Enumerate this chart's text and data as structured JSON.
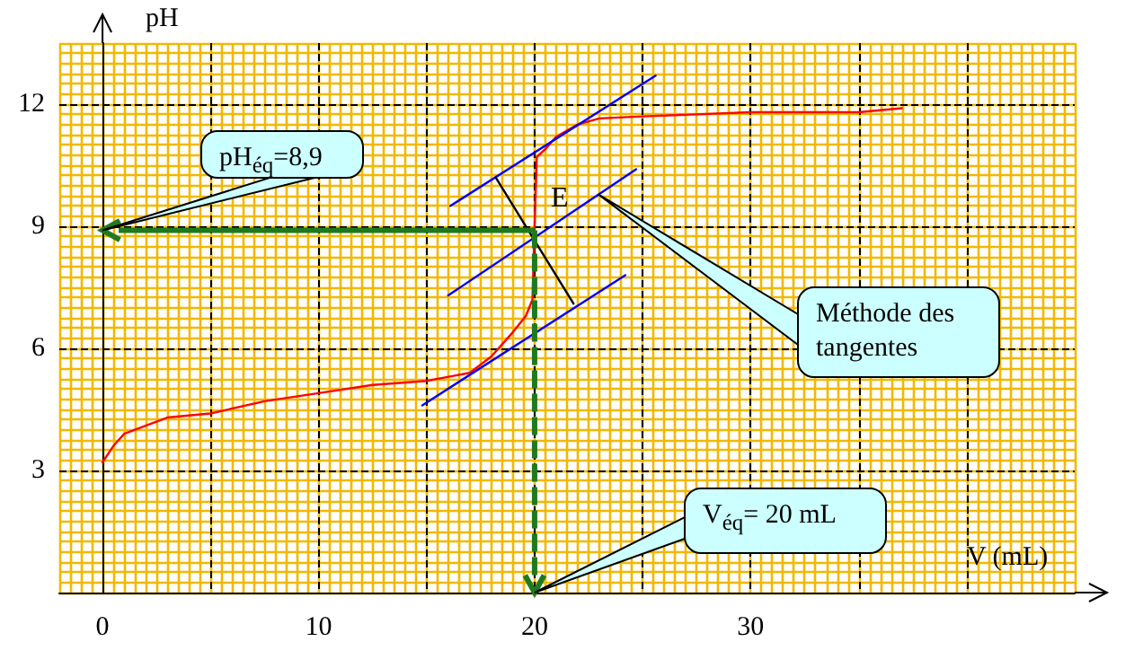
{
  "chart_data": {
    "type": "line",
    "xlabel": "V (mL)",
    "ylabel": "pH",
    "xlim": [
      -2,
      45
    ],
    "ylim": [
      0,
      13.5
    ],
    "xticks": [
      0,
      {
        "value": 5,
        "label": null
      },
      10,
      {
        "value": 15,
        "label": null
      },
      20,
      {
        "value": 25,
        "label": null
      },
      30,
      {
        "value": 35,
        "label": null
      },
      {
        "value": 40,
        "label": null
      }
    ],
    "yticks": [
      {
        "value": 0,
        "label": null
      },
      3,
      6,
      9,
      12
    ],
    "grid": true,
    "marker": "none",
    "line_style": "solid",
    "series": [
      {
        "color": "#ff0000",
        "x": [
          0,
          0.5,
          1,
          2,
          3,
          5,
          7.5,
          10,
          12.5,
          15,
          17,
          18,
          19,
          19.6,
          19.9,
          20,
          20.1,
          20.5,
          21,
          22,
          23,
          25,
          30,
          35,
          37
        ],
        "values": [
          3.2,
          3.6,
          3.9,
          4.1,
          4.3,
          4.4,
          4.7,
          4.9,
          5.1,
          5.2,
          5.4,
          5.8,
          6.4,
          6.8,
          7.2,
          9,
          10.7,
          10.9,
          11.2,
          11.5,
          11.65,
          11.7,
          11.8,
          11.8,
          11.9
        ]
      },
      {
        "color": "#0000ff",
        "x": [
          16.1,
          25.6
        ],
        "values": [
          9.5,
          12.7
        ]
      },
      {
        "color": "#0000ff",
        "x": [
          16,
          24.7
        ],
        "values": [
          7.3,
          10.4
        ]
      },
      {
        "color": "#0000ff",
        "x": [
          14.8,
          24.2
        ],
        "values": [
          4.6,
          7.8
        ]
      },
      {
        "color": "#000000",
        "x": [
          18.2,
          21.8
        ],
        "values": [
          10.2,
          7.1
        ]
      }
    ],
    "annotations": [
      "pH$_{éq}$=8,9",
      "Méthode des tangentes",
      "V$_{éq}$= 20 mL",
      {
        "text": "E",
        "x": 20,
        "y": 8.9
      }
    ]
  }
}
